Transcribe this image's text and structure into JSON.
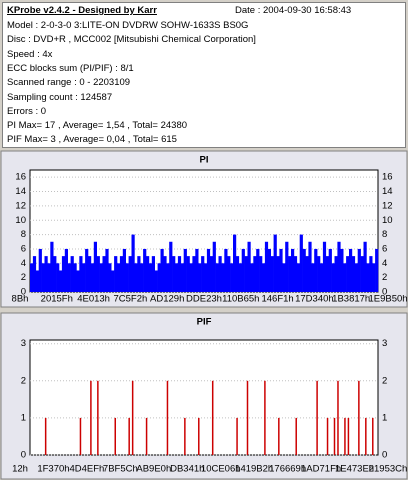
{
  "info": {
    "title": "KProbe v2.4.2 - Designed by Karr",
    "date": "Date : 2004-09-30 16:58:43",
    "lines": [
      "Model : 2-0-3-0 3:LITE-ON DVDRW SOHW-1633S BS0G",
      "Disc : DVD+R , MCC002 [Mitsubishi Chemical Corporation]",
      "Speed : 4x",
      "ECC blocks sum (PI/PIF) : 8/1",
      "Scanned range : 0 - 2203109",
      "Sampling count : 124587",
      "Errors : 0",
      "PI Max= 17 , Average= 1,54 , Total= 24380",
      "PIF Max= 3 , Average= 0,04 , Total= 615"
    ]
  },
  "chart_data": [
    {
      "type": "bar",
      "title": "PI",
      "color": "#0000ff",
      "ylim": [
        0,
        17
      ],
      "yticks": [
        0,
        2,
        4,
        6,
        8,
        10,
        12,
        14,
        16
      ],
      "grid": true,
      "xtick_labels": [
        "8Bh",
        "2015Fh",
        "4E013h",
        "7C5F2h",
        "AD129h",
        "DDE23h",
        "110B65h",
        "146F1h",
        "17D340h",
        "1B3817h",
        "1E9B50h"
      ],
      "values": [
        4,
        5,
        3,
        6,
        4,
        5,
        4,
        7,
        5,
        4,
        3,
        5,
        6,
        4,
        5,
        4,
        3,
        5,
        4,
        6,
        5,
        4,
        7,
        5,
        4,
        5,
        6,
        4,
        3,
        5,
        4,
        5,
        6,
        4,
        5,
        8,
        4,
        5,
        4,
        6,
        5,
        4,
        5,
        3,
        4,
        6,
        5,
        4,
        7,
        5,
        4,
        5,
        4,
        6,
        5,
        4,
        5,
        6,
        4,
        5,
        4,
        6,
        5,
        7,
        4,
        5,
        4,
        6,
        5,
        4,
        8,
        5,
        4,
        6,
        5,
        7,
        4,
        5,
        6,
        5,
        4,
        7,
        6,
        5,
        8,
        5,
        6,
        4,
        7,
        5,
        6,
        5,
        4,
        8,
        6,
        5,
        7,
        4,
        6,
        5,
        4,
        7,
        5,
        6,
        4,
        5,
        7,
        6,
        4,
        5,
        6,
        5,
        4,
        6,
        5,
        7,
        4,
        5,
        4,
        6
      ]
    },
    {
      "type": "spike",
      "title": "PIF",
      "color": "#cc0000",
      "ylim": [
        0,
        3.1
      ],
      "yticks": [
        0,
        1,
        2,
        3
      ],
      "grid": true,
      "xtick_labels": [
        "12h",
        "1F370h",
        "4D4EFh",
        "7BF5Ch",
        "AB9E0h",
        "DB341h",
        "10CE06h",
        "1419B2h",
        "176669h",
        "1AD71Fh",
        "1E473Eh",
        "21953Ch"
      ],
      "values": [
        0,
        0,
        0,
        0,
        1,
        0,
        0,
        0,
        0,
        0,
        0,
        0,
        0,
        0,
        1,
        0,
        0,
        2,
        0,
        2,
        0,
        0,
        0,
        0,
        1,
        0,
        0,
        0,
        1,
        2,
        0,
        0,
        0,
        1,
        0,
        0,
        0,
        0,
        0,
        2,
        0,
        0,
        0,
        0,
        1,
        0,
        0,
        0,
        1,
        0,
        0,
        0,
        2,
        0,
        0,
        0,
        0,
        0,
        0,
        1,
        0,
        0,
        2,
        0,
        0,
        0,
        0,
        2,
        0,
        0,
        0,
        1,
        0,
        0,
        0,
        0,
        1,
        0,
        0,
        0,
        0,
        0,
        2,
        0,
        0,
        1,
        0,
        1,
        2,
        0,
        1,
        1,
        0,
        0,
        2,
        0,
        1,
        0,
        1,
        0
      ]
    }
  ]
}
